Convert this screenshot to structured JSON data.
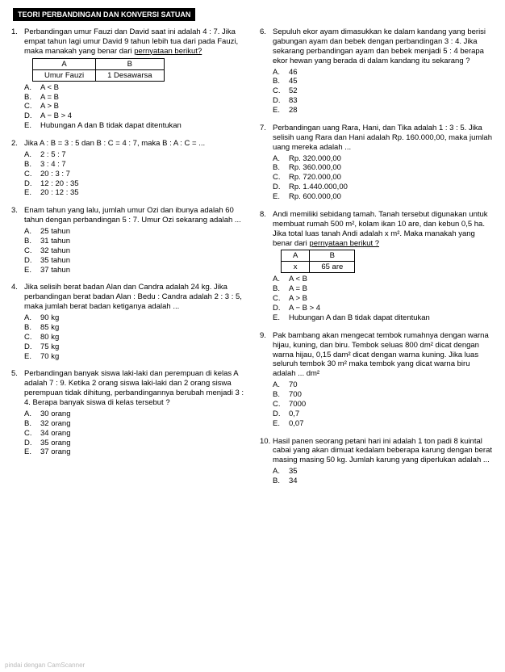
{
  "title": "TEORI PERBANDINGAN DAN KONVERSI SATUAN",
  "footer": "pindai dengan CamScanner",
  "left": [
    {
      "num": "1.",
      "stem": "Perbandingan umur Fauzi dan David saat ini adalah 4 : 7. Jika empat tahun lagi umur David 9 tahun lebih tua dari pada Fauzi, maka manakah yang benar dari pernyataan berikut?",
      "tbl": {
        "h1": "A",
        "h2": "B",
        "c1": "Umur Fauzi",
        "c2": "1 Desawarsa"
      },
      "opts": [
        {
          "l": "A.",
          "t": "A < B"
        },
        {
          "l": "B.",
          "t": "A = B"
        },
        {
          "l": "C.",
          "t": "A > B"
        },
        {
          "l": "D.",
          "t": "A − B > 4"
        },
        {
          "l": "E.",
          "t": "Hubungan A dan B tidak dapat ditentukan"
        }
      ]
    },
    {
      "num": "2.",
      "stem": "Jika A : B = 3 : 5 dan B : C = 4 : 7, maka B : A : C = ...",
      "opts": [
        {
          "l": "A.",
          "t": "2 : 5 : 7"
        },
        {
          "l": "B.",
          "t": "3 : 4 : 7"
        },
        {
          "l": "C.",
          "t": "20 : 3 : 7"
        },
        {
          "l": "D.",
          "t": "12 : 20 : 35"
        },
        {
          "l": "E.",
          "t": "20 : 12 : 35"
        }
      ]
    },
    {
      "num": "3.",
      "stem": "Enam tahun yang lalu, jumlah umur Ozi dan ibunya adalah 60 tahun dengan perbandingan 5 : 7. Umur Ozi sekarang adalah ...",
      "opts": [
        {
          "l": "A.",
          "t": "25 tahun"
        },
        {
          "l": "B.",
          "t": "31 tahun"
        },
        {
          "l": "C.",
          "t": "32 tahun"
        },
        {
          "l": "D.",
          "t": "35 tahun"
        },
        {
          "l": "E.",
          "t": "37 tahun"
        }
      ]
    },
    {
      "num": "4.",
      "stem": "Jika selisih berat badan Alan dan Candra adalah 24 kg. Jika perbandingan berat badan Alan : Bedu : Candra adalah 2 : 3 : 5, maka jumlah berat badan ketiganya adalah ...",
      "opts": [
        {
          "l": "A.",
          "t": "90 kg"
        },
        {
          "l": "B.",
          "t": "85 kg"
        },
        {
          "l": "C.",
          "t": "80 kg"
        },
        {
          "l": "D.",
          "t": "75 kg"
        },
        {
          "l": "E.",
          "t": "70 kg"
        }
      ]
    },
    {
      "num": "5.",
      "stem": "Perbandingan banyak siswa laki-laki dan perempuan di kelas A adalah 7 : 9. Ketika 2 orang siswa laki-laki dan 2 orang siswa perempuan tidak dihitung, perbandingannya berubah menjadi 3 : 4. Berapa banyak siswa di kelas tersebut ?",
      "opts": [
        {
          "l": "A.",
          "t": "30 orang"
        },
        {
          "l": "B.",
          "t": "32 orang"
        },
        {
          "l": "C.",
          "t": "34 orang"
        },
        {
          "l": "D.",
          "t": "35 orang"
        },
        {
          "l": "E.",
          "t": "37 orang"
        }
      ]
    }
  ],
  "right": [
    {
      "num": "6.",
      "stem": "Sepuluh ekor ayam dimasukkan ke dalam kandang yang berisi gabungan ayam dan bebek dengan perbandingan 3 : 4. Jika sekarang perbandingan ayam dan bebek menjadi 5 : 4 berapa ekor hewan yang berada di dalam kandang itu sekarang ?",
      "opts": [
        {
          "l": "A.",
          "t": "46"
        },
        {
          "l": "B.",
          "t": "45"
        },
        {
          "l": "C.",
          "t": "52"
        },
        {
          "l": "D.",
          "t": "83"
        },
        {
          "l": "E.",
          "t": "28"
        }
      ]
    },
    {
      "num": "7.",
      "stem": "Perbandingan uang Rara, Hani, dan Tika adalah 1 : 3 : 5. Jika selisih uang Rara dan Hani adalah Rp. 160.000,00, maka jumlah uang mereka adalah ...",
      "opts": [
        {
          "l": "A.",
          "t": "Rp. 320.000,00"
        },
        {
          "l": "B.",
          "t": "Rp. 360.000,00"
        },
        {
          "l": "C.",
          "t": "Rp. 720.000,00"
        },
        {
          "l": "D.",
          "t": "Rp. 1.440.000,00"
        },
        {
          "l": "E.",
          "t": "Rp. 600.000,00"
        }
      ]
    },
    {
      "num": "8.",
      "stem": "Andi memiliki sebidang tamah. Tanah tersebut digunakan untuk membuat rumah 500 m², kolam ikan 10 are, dan kebun 0,5 ha. Jika total luas tanah Andi adalah x m². Maka manakah yang benar dari pernyataan berikut ?",
      "tbl": {
        "h1": "A",
        "h2": "B",
        "c1": "x",
        "c2": "65 are"
      },
      "opts": [
        {
          "l": "A.",
          "t": "A < B"
        },
        {
          "l": "B.",
          "t": "A = B"
        },
        {
          "l": "C.",
          "t": "A > B"
        },
        {
          "l": "D.",
          "t": "A − B > 4"
        },
        {
          "l": "E.",
          "t": "Hubungan A dan B tidak dapat ditentukan"
        }
      ]
    },
    {
      "num": "9.",
      "stem": "Pak bambang akan mengecat tembok rumahnya dengan warna hijau, kuning, dan biru. Tembok seluas 800 dm² dicat dengan warna hijau, 0,15 dam² dicat dengan warna kuning. Jika luas seluruh tembok 30 m² maka tembok yang dicat warna biru adalah ... dm²",
      "opts": [
        {
          "l": "A.",
          "t": "70"
        },
        {
          "l": "B.",
          "t": "700"
        },
        {
          "l": "C.",
          "t": "7000"
        },
        {
          "l": "D.",
          "t": "0,7"
        },
        {
          "l": "E.",
          "t": "0,07"
        }
      ]
    },
    {
      "num": "10.",
      "stem": "Hasil panen seorang petani hari ini adalah 1 ton padi 8 kuintal cabai yang akan dimuat kedalam beberapa karung dengan berat masing masing 50 kg. Jumlah karung yang diperlukan adalah ...",
      "opts": [
        {
          "l": "A.",
          "t": "35"
        },
        {
          "l": "B.",
          "t": "34"
        }
      ]
    }
  ]
}
